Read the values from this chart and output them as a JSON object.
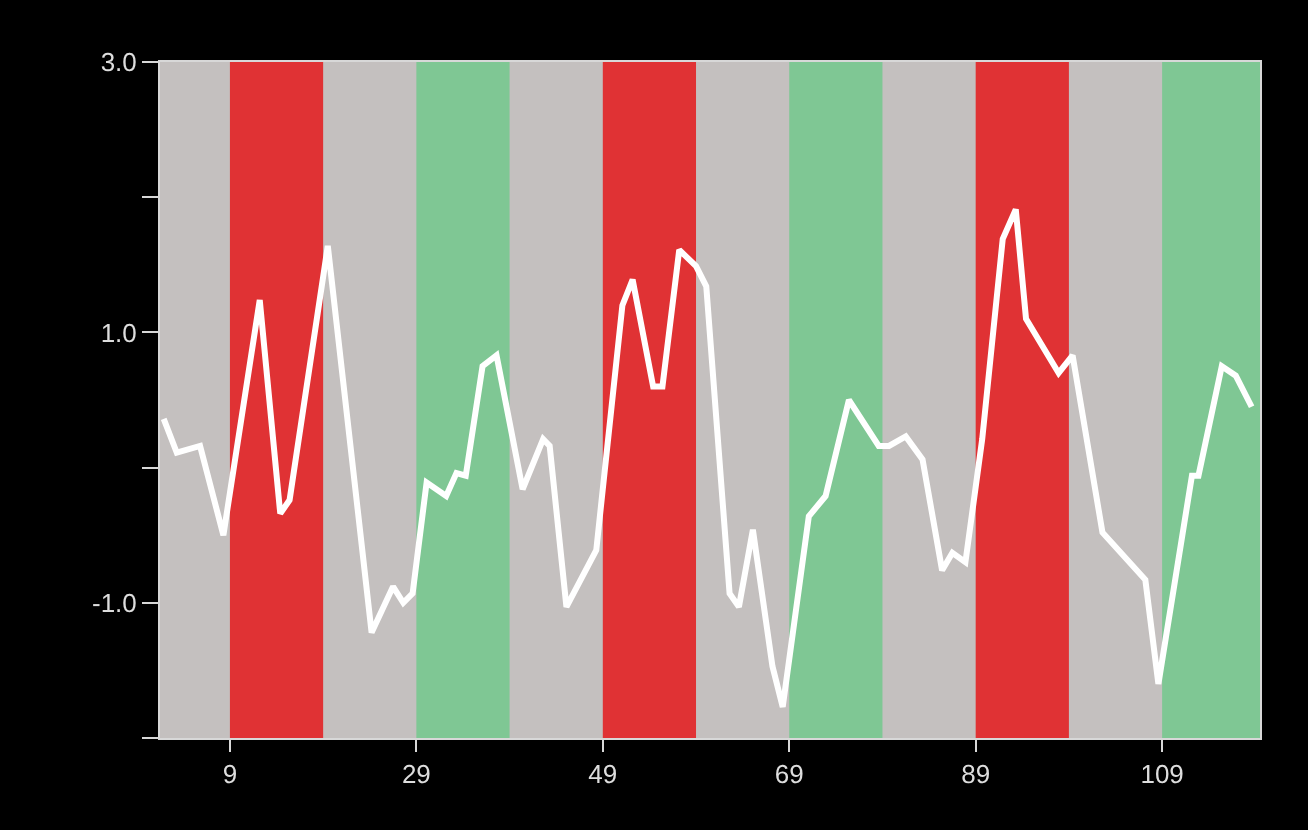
{
  "chart_data": {
    "type": "line",
    "x": [
      1.9,
      3.3,
      5.8,
      8.3,
      12.2,
      14.4,
      15.4,
      19.5,
      24.2,
      26.5,
      27.6,
      28.6,
      30.1,
      32.2,
      33.3,
      34.3,
      36.1,
      37.6,
      40.4,
      42.6,
      43.3,
      45.1,
      48.3,
      51.1,
      52.2,
      54.4,
      55.4,
      57.2,
      59,
      60.1,
      62.6,
      63.6,
      65.1,
      67.2,
      68.3,
      71.1,
      72.9,
      75.4,
      78.6,
      79.7,
      81.5,
      83.3,
      85.4,
      86.5,
      87.9,
      89.7,
      91.9,
      93.3,
      94.4,
      97.9,
      99.4,
      102.6,
      107.2,
      108.6,
      112.2,
      112.9,
      115.4,
      116.9,
      118.6
    ],
    "series": [
      {
        "color": "#ffffff",
        "values": [
          0.36,
          0.11,
          0.16,
          -0.5,
          1.24,
          -0.34,
          -0.24,
          1.64,
          -1.22,
          -0.88,
          -1.0,
          -0.93,
          -0.11,
          -0.21,
          -0.04,
          -0.06,
          0.75,
          0.83,
          -0.16,
          0.21,
          0.16,
          -1.03,
          -0.61,
          1.2,
          1.39,
          0.6,
          0.6,
          1.61,
          1.49,
          1.34,
          -0.93,
          -1.03,
          -0.46,
          -1.47,
          -1.77,
          -0.36,
          -0.21,
          0.5,
          0.16,
          0.16,
          0.23,
          0.06,
          -0.76,
          -0.63,
          -0.7,
          0.21,
          1.69,
          1.91,
          1.1,
          0.7,
          0.83,
          -0.48,
          -0.83,
          -1.6,
          -0.06,
          -0.06,
          0.75,
          0.68,
          0.45
        ]
      }
    ],
    "xlim": [
      1.5,
      119.5
    ],
    "xticks": [
      9,
      29,
      49,
      69,
      89,
      109
    ],
    "ylim": [
      -2,
      3
    ],
    "yticks": [
      {
        "value": 3,
        "label": "3.0"
      },
      {
        "value": 2,
        "label": null
      },
      {
        "value": 1,
        "label": "1.0"
      },
      {
        "value": 0,
        "label": null
      },
      {
        "value": -1,
        "label": "-1.0"
      },
      {
        "value": -2,
        "label": null
      }
    ],
    "bands": [
      {
        "axis": "x",
        "from": 9,
        "to": 19,
        "color": "#e03234"
      },
      {
        "axis": "x",
        "from": 29,
        "to": 39,
        "color": "#7fc794"
      },
      {
        "axis": "x",
        "from": 49,
        "to": 59,
        "color": "#e03234"
      },
      {
        "axis": "x",
        "from": 69,
        "to": 79,
        "color": "#7fc794"
      },
      {
        "axis": "x",
        "from": 89,
        "to": 99,
        "color": "#e03234"
      },
      {
        "axis": "x",
        "from": 109,
        "to": 119.5,
        "color": "#7fc794"
      }
    ],
    "grid": false,
    "marker": "none",
    "line_style": "solid"
  }
}
